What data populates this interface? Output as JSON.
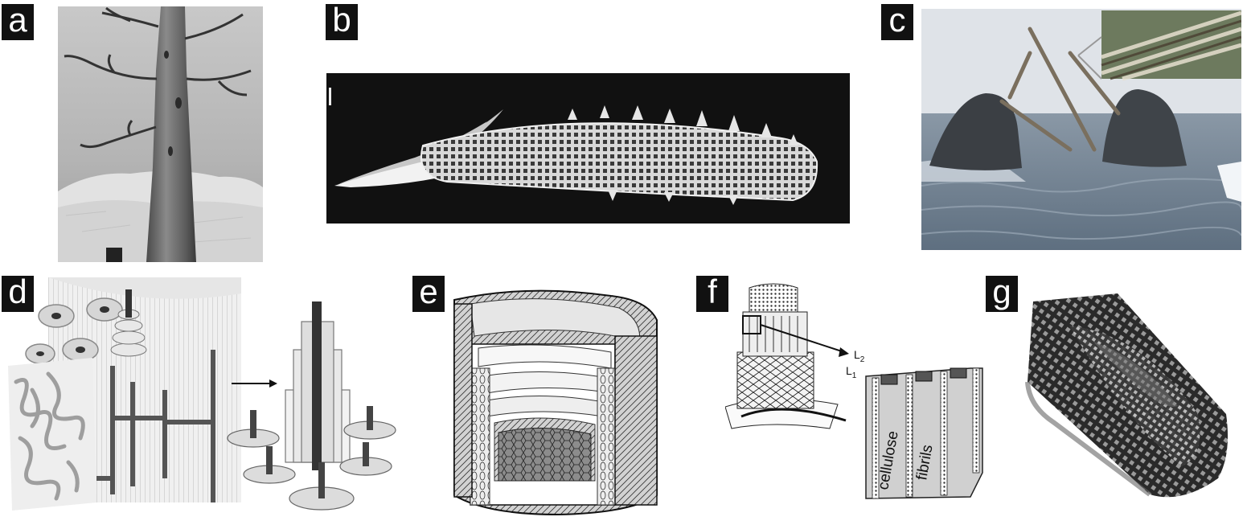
{
  "panels": {
    "a": {
      "label": "a"
    },
    "b": {
      "label": "b"
    },
    "c": {
      "label": "c"
    },
    "d": {
      "label": "d"
    },
    "e": {
      "label": "e"
    },
    "f": {
      "label": "f",
      "l2": "L",
      "l2_sub": "2",
      "l1": "L",
      "l1_sub": "1",
      "word1": "cellulose",
      "word2": "fibrils"
    },
    "g": {
      "label": "g"
    }
  }
}
